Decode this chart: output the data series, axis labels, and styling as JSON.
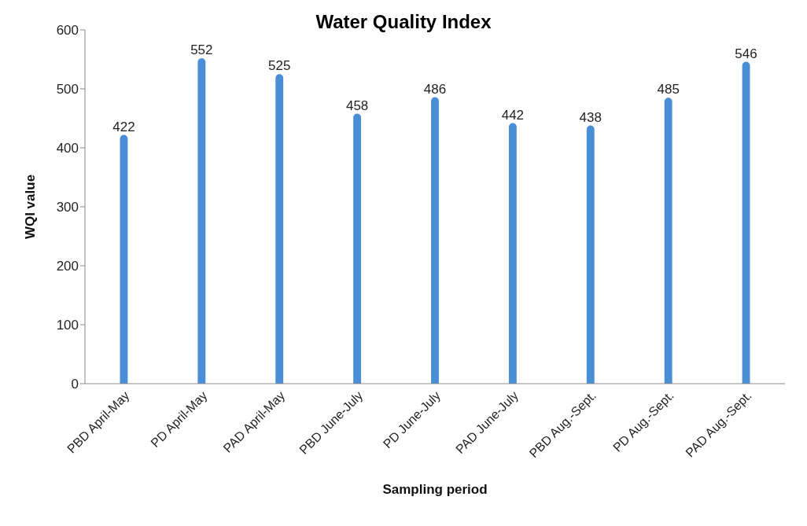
{
  "chart_data": {
    "type": "bar",
    "title": "Water Quality Index",
    "xlabel": "Sampling period",
    "ylabel": "WQI value",
    "categories": [
      "PBD April-May",
      "PD April-May",
      "PAD April-May",
      "PBD June-July",
      "PD June-July",
      "PAD June-July",
      "PBD Aug.-Sept.",
      "PD Aug.-Sept.",
      "PAD Aug.-Sept."
    ],
    "values": [
      422,
      552,
      525,
      458,
      486,
      442,
      438,
      485,
      546
    ],
    "color": "#4a8fd6",
    "ylim": [
      0,
      600
    ],
    "yticks": [
      0,
      100,
      200,
      300,
      400,
      500,
      600
    ],
    "grid": false,
    "data_labels": true
  }
}
